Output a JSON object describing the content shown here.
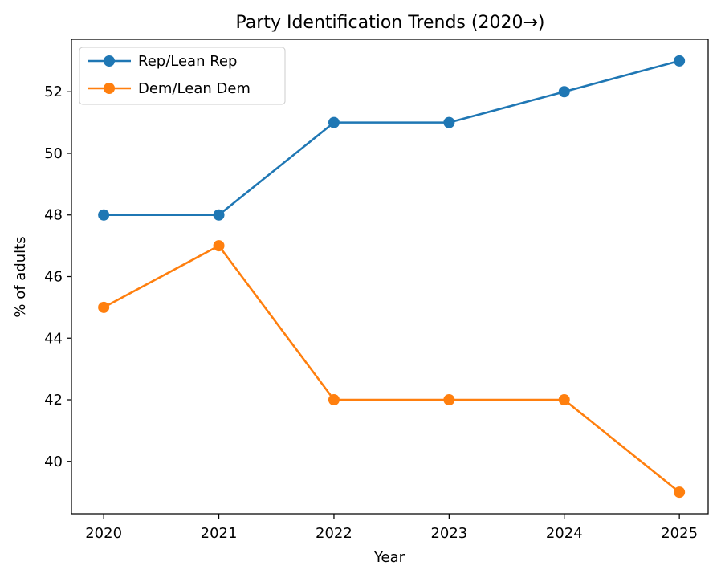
{
  "chart_data": {
    "type": "line",
    "title": "Party Identification Trends (2020→)",
    "xlabel": "Year",
    "ylabel": "% of adults",
    "x": [
      2020,
      2021,
      2022,
      2023,
      2024,
      2025
    ],
    "x_tick_labels": [
      "2020",
      "2021",
      "2022",
      "2023",
      "2024",
      "2025"
    ],
    "xlim": [
      2019.72,
      2025.25
    ],
    "ylim": [
      38.3,
      53.7
    ],
    "y_ticks": [
      40,
      42,
      44,
      46,
      48,
      50,
      52
    ],
    "y_tick_labels": [
      "40",
      "42",
      "44",
      "46",
      "48",
      "50",
      "52"
    ],
    "grid": false,
    "legend_position": "upper-left",
    "series": [
      {
        "name": "Rep/Lean Rep",
        "color": "#1f77b4",
        "values": [
          48,
          48,
          51,
          51,
          52,
          53
        ]
      },
      {
        "name": "Dem/Lean Dem",
        "color": "#ff7f0e",
        "values": [
          45,
          47,
          42,
          42,
          42,
          39
        ]
      }
    ]
  }
}
